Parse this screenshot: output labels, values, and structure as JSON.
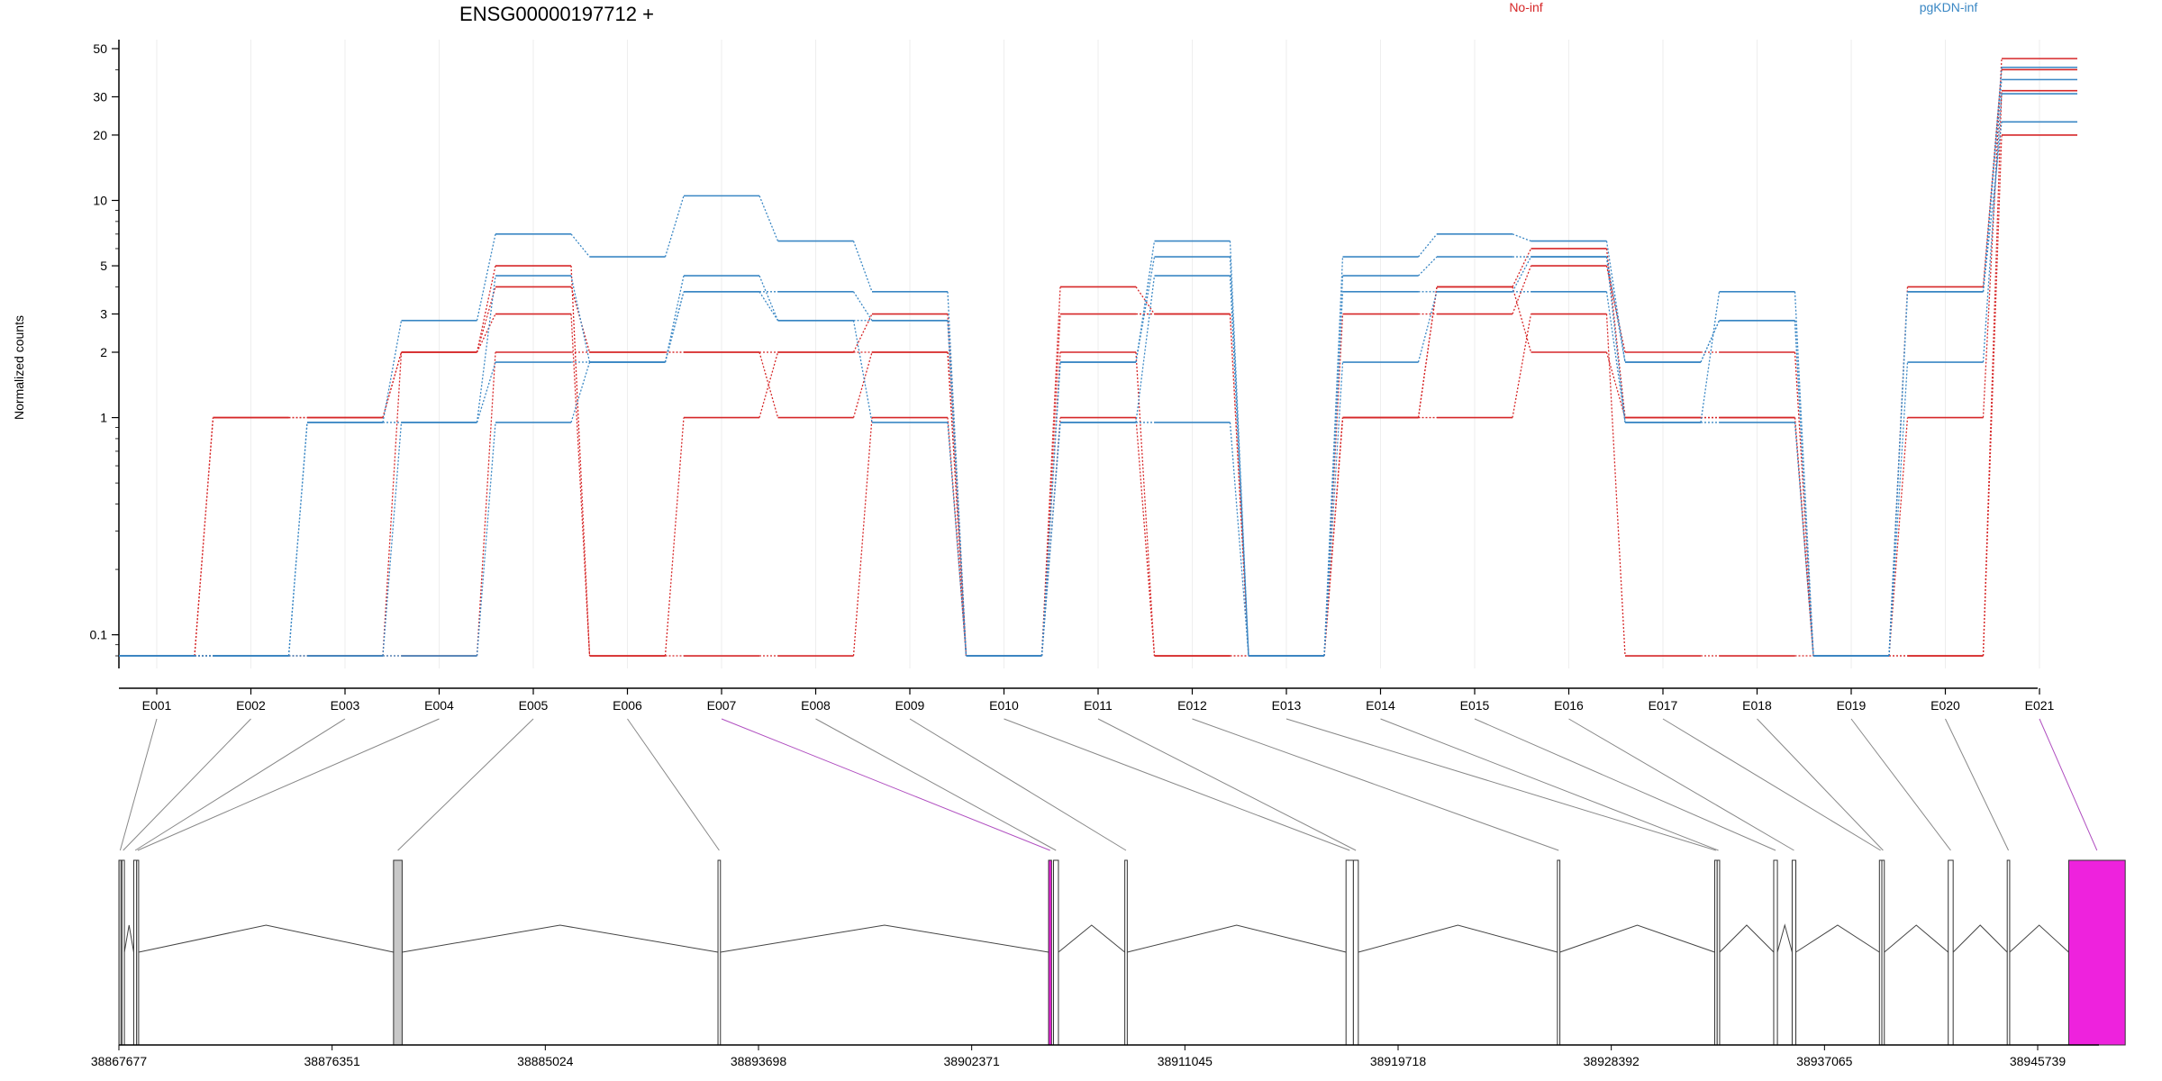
{
  "chart_data": {
    "type": "line",
    "title": "ENSG00000197712 +",
    "ylabel": "Normalized counts",
    "xlabel": "",
    "y_scale": "log",
    "ylim": [
      0.07,
      55
    ],
    "y_ticks": [
      0.1,
      1,
      2,
      3,
      5,
      10,
      20,
      30,
      50
    ],
    "y_tick_labels": [
      "0.1",
      "1",
      "2",
      "3",
      "5",
      "10",
      "20",
      "30",
      "50"
    ],
    "grid": true,
    "legend": {
      "placement": "top-right",
      "entries": [
        "No-inf",
        "pgKDN-inf"
      ]
    },
    "colors": {
      "No-inf": "#d62728",
      "pgKDN-inf": "#3a87c4",
      "highlight": "#ee22dd",
      "gene_line": "#444444"
    },
    "categories": [
      "E001",
      "E002",
      "E003",
      "E004",
      "E005",
      "E006",
      "E007",
      "E008",
      "E009",
      "E010",
      "E011",
      "E012",
      "E013",
      "E014",
      "E015",
      "E016",
      "E017",
      "E018",
      "E019",
      "E020",
      "E021"
    ],
    "series": [
      {
        "group": "No-inf",
        "values": [
          0.08,
          1,
          1,
          2,
          5,
          0.08,
          1,
          2,
          3,
          0.08,
          4,
          3,
          0.08,
          1,
          4,
          6,
          1,
          1,
          0.08,
          1,
          45
        ]
      },
      {
        "group": "No-inf",
        "values": [
          0.08,
          1,
          1,
          2,
          4,
          2,
          2,
          1,
          2,
          0.08,
          3,
          3,
          0.08,
          3,
          3,
          5,
          2,
          2,
          0.08,
          4,
          40
        ]
      },
      {
        "group": "No-inf",
        "values": [
          0.08,
          0.08,
          0.08,
          2,
          3,
          0.08,
          0.08,
          0.08,
          1,
          0.08,
          2,
          0.08,
          0.08,
          1,
          1,
          3,
          0.08,
          0.08,
          0.08,
          0.08,
          32
        ]
      },
      {
        "group": "No-inf",
        "values": [
          0.08,
          0.08,
          0.08,
          0.08,
          2,
          2,
          2,
          2,
          2,
          0.08,
          1,
          0.08,
          0.08,
          1,
          4,
          2,
          1,
          1,
          0.08,
          0.08,
          20
        ]
      },
      {
        "group": "pgKDN-inf",
        "values": [
          0.08,
          0.08,
          0.95,
          2.8,
          7,
          5.5,
          10.5,
          6.5,
          3.8,
          0.08,
          1.8,
          6.5,
          0.08,
          5.5,
          7,
          6.5,
          1.8,
          2.8,
          0.08,
          3.8,
          41
        ]
      },
      {
        "group": "pgKDN-inf",
        "values": [
          0.08,
          0.08,
          0.95,
          0.95,
          4.5,
          1.8,
          4.5,
          2.8,
          2.8,
          0.08,
          1.8,
          5.5,
          0.08,
          4.5,
          5.5,
          5.5,
          1.8,
          2.8,
          0.08,
          3.8,
          36
        ]
      },
      {
        "group": "pgKDN-inf",
        "values": [
          0.08,
          0.08,
          0.08,
          0.95,
          1.8,
          1.8,
          3.8,
          3.8,
          2.8,
          0.08,
          0.95,
          4.5,
          0.08,
          3.8,
          3.8,
          3.8,
          0.95,
          3.8,
          0.08,
          1.8,
          31
        ]
      },
      {
        "group": "pgKDN-inf",
        "values": [
          0.08,
          0.08,
          0.08,
          0.08,
          0.95,
          1.8,
          3.8,
          2.8,
          0.95,
          0.08,
          0.95,
          0.95,
          0.08,
          1.8,
          3.8,
          5.5,
          0.95,
          0.95,
          0.08,
          3.8,
          23
        ]
      }
    ],
    "genomic_axis": {
      "range": [
        38867677,
        38945739
      ],
      "tick_labels": [
        "38867677",
        "38876351",
        "38885024",
        "38893698",
        "38902371",
        "38911045",
        "38919718",
        "38928392",
        "38937065",
        "38945739"
      ],
      "exons": [
        {
          "start": 38867677,
          "end": 38867780,
          "category": "E001",
          "fill": "#c8c8c8"
        },
        {
          "start": 38867800,
          "end": 38867900,
          "category": "E002",
          "fill": "#ffffff"
        },
        {
          "start": 38868280,
          "end": 38868400,
          "category": "E003",
          "fill": "#ffffff"
        },
        {
          "start": 38868400,
          "end": 38868480,
          "category": "E004",
          "fill": "#ffffff"
        },
        {
          "start": 38878850,
          "end": 38879200,
          "category": "E005",
          "fill": "#c8c8c8"
        },
        {
          "start": 38892050,
          "end": 38892150,
          "category": "E006",
          "fill": "#ffffff"
        },
        {
          "start": 38905500,
          "end": 38905620,
          "category": "E007",
          "fill": "#ee22dd"
        },
        {
          "start": 38905700,
          "end": 38905900,
          "category": "E008",
          "fill": "#ffffff"
        },
        {
          "start": 38908600,
          "end": 38908700,
          "category": "E009",
          "fill": "#ffffff"
        },
        {
          "start": 38917600,
          "end": 38917900,
          "category": "E010",
          "fill": "#ffffff"
        },
        {
          "start": 38917900,
          "end": 38918100,
          "category": "E011",
          "fill": "#ffffff"
        },
        {
          "start": 38926200,
          "end": 38926300,
          "category": "E012",
          "fill": "#ffffff"
        },
        {
          "start": 38932600,
          "end": 38932700,
          "category": "E013",
          "fill": "#ffffff"
        },
        {
          "start": 38932700,
          "end": 38932800,
          "category": "E014",
          "fill": "#ffffff"
        },
        {
          "start": 38935000,
          "end": 38935150,
          "category": "E015",
          "fill": "#ffffff"
        },
        {
          "start": 38935750,
          "end": 38935900,
          "category": "E016",
          "fill": "#ffffff"
        },
        {
          "start": 38939300,
          "end": 38939400,
          "category": "E017",
          "fill": "#ffffff"
        },
        {
          "start": 38939400,
          "end": 38939500,
          "category": "E018",
          "fill": "#ffffff"
        },
        {
          "start": 38942100,
          "end": 38942300,
          "category": "E019",
          "fill": "#ffffff"
        },
        {
          "start": 38944500,
          "end": 38944600,
          "category": "E020",
          "fill": "#ffffff"
        },
        {
          "start": 38947000,
          "end": 38949300,
          "category": "E021",
          "fill": "#ee22dd"
        }
      ]
    }
  }
}
